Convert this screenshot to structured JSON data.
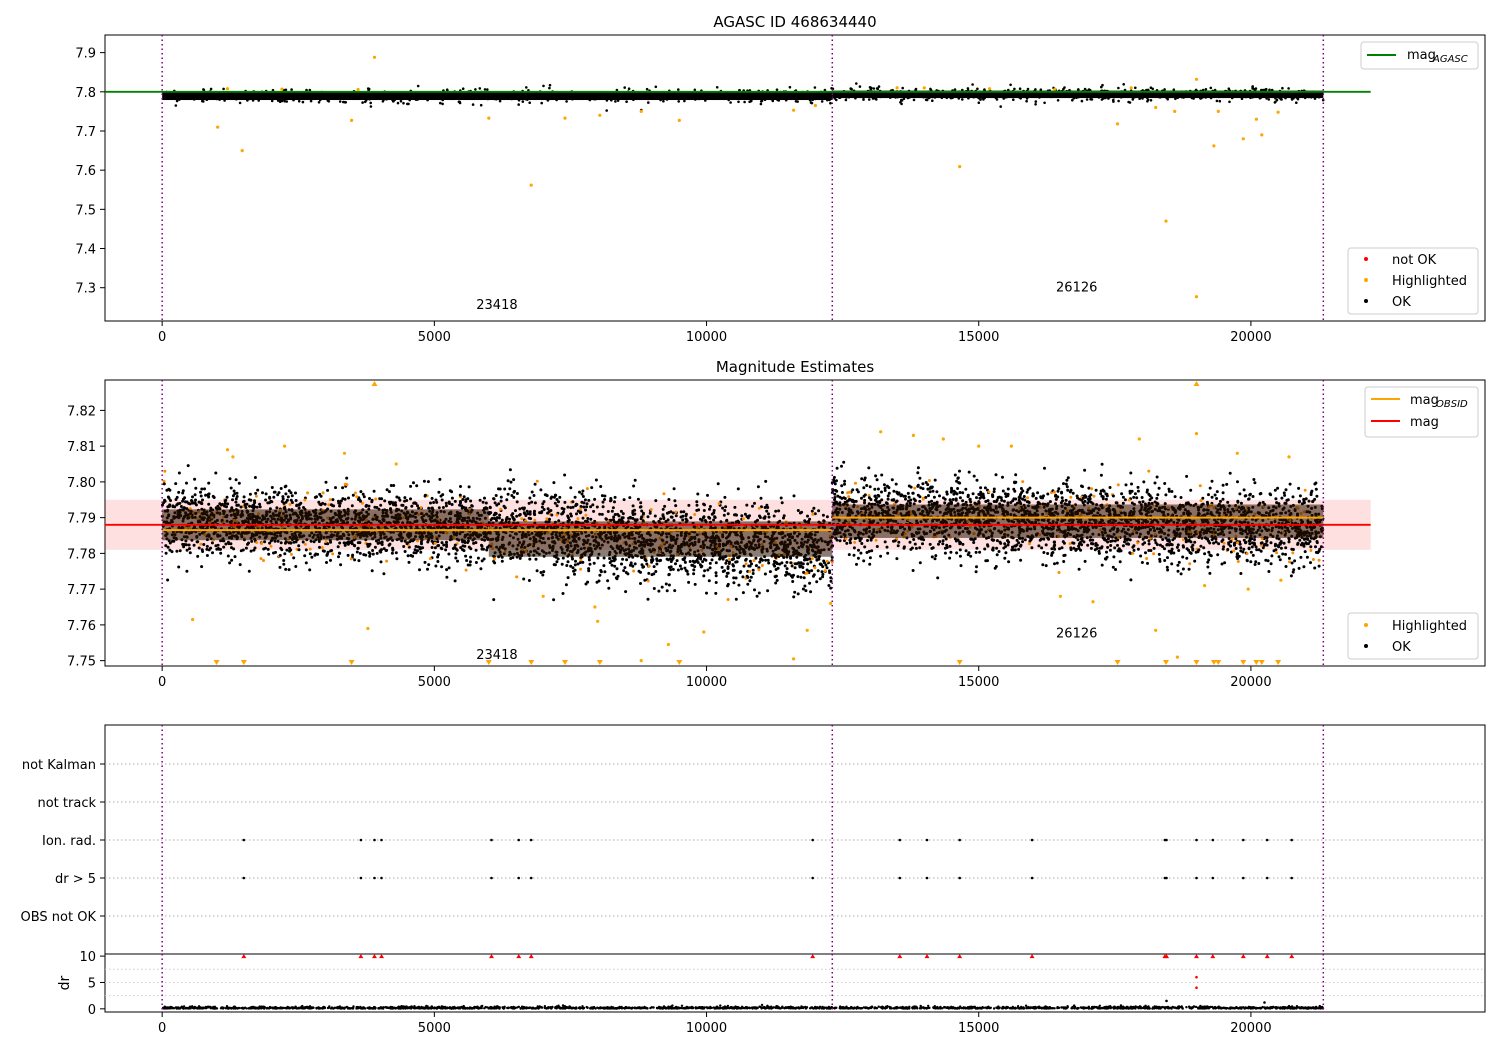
{
  "chart_data": [
    {
      "type": "scatter",
      "title": "AGASC ID 468634440",
      "xlim": [
        -1050,
        24300
      ],
      "ylim": [
        7.215,
        7.945
      ],
      "xticks": [
        0,
        5000,
        10000,
        15000,
        20000
      ],
      "yticks": [
        7.3,
        7.4,
        7.5,
        7.6,
        7.7,
        7.8,
        7.9
      ],
      "ytick_labels": [
        "7.3",
        "7.4",
        "7.5",
        "7.6",
        "7.7",
        "7.8",
        "7.9"
      ],
      "obs_boundaries": [
        0,
        12310,
        21330
      ],
      "obs_labels": [
        {
          "text": "23418",
          "x": 6150,
          "y": 7.245
        },
        {
          "text": "26126",
          "x": 16800,
          "y": 7.29
        }
      ],
      "mag_agasc": 7.8,
      "mag_agasc_xrange": [
        -1050,
        22200
      ],
      "ok_band": [
        {
          "x": [
            0,
            12310
          ],
          "ymin": 7.775,
          "ymax": 7.805
        },
        {
          "x": [
            12310,
            21330
          ],
          "ymin": 7.78,
          "ymax": 7.807
        }
      ],
      "highlighted": [
        {
          "x": 1020,
          "y": 7.71
        },
        {
          "x": 1470,
          "y": 7.65
        },
        {
          "x": 3480,
          "y": 7.727
        },
        {
          "x": 3900,
          "y": 7.888
        },
        {
          "x": 6000,
          "y": 7.733
        },
        {
          "x": 6780,
          "y": 7.562
        },
        {
          "x": 7400,
          "y": 7.733
        },
        {
          "x": 8040,
          "y": 7.74
        },
        {
          "x": 8800,
          "y": 7.75
        },
        {
          "x": 9500,
          "y": 7.727
        },
        {
          "x": 11600,
          "y": 7.753
        },
        {
          "x": 12000,
          "y": 7.765
        },
        {
          "x": 14650,
          "y": 7.609
        },
        {
          "x": 17550,
          "y": 7.718
        },
        {
          "x": 18250,
          "y": 7.76
        },
        {
          "x": 18440,
          "y": 7.47
        },
        {
          "x": 18600,
          "y": 7.75
        },
        {
          "x": 19000,
          "y": 7.277
        },
        {
          "x": 19000,
          "y": 7.832
        },
        {
          "x": 19320,
          "y": 7.662
        },
        {
          "x": 19400,
          "y": 7.75
        },
        {
          "x": 19860,
          "y": 7.68
        },
        {
          "x": 20100,
          "y": 7.73
        },
        {
          "x": 20200,
          "y": 7.69
        },
        {
          "x": 20500,
          "y": 7.748
        },
        {
          "x": 1200,
          "y": 7.808
        },
        {
          "x": 2200,
          "y": 7.807
        },
        {
          "x": 3600,
          "y": 7.806
        },
        {
          "x": 13500,
          "y": 7.81
        },
        {
          "x": 14000,
          "y": 7.81
        },
        {
          "x": 15200,
          "y": 7.808
        },
        {
          "x": 16400,
          "y": 7.807
        },
        {
          "x": 17800,
          "y": 7.81
        }
      ],
      "legend_top": {
        "placement": "upper right",
        "entries": [
          {
            "label": "mag",
            "sub": "AGASC",
            "color": "#008000"
          }
        ]
      },
      "legend_bottom": {
        "placement": "lower right",
        "entries": [
          {
            "label": "not OK",
            "color": "#ff0000"
          },
          {
            "label": "Highlighted",
            "color": "#ffa500"
          },
          {
            "label": "OK",
            "color": "#000000"
          }
        ]
      }
    },
    {
      "type": "scatter",
      "title": "Magnitude Estimates",
      "xlim": [
        -1050,
        24300
      ],
      "ylim": [
        7.7485,
        7.8285
      ],
      "xticks": [
        0,
        5000,
        10000,
        15000,
        20000
      ],
      "yticks": [
        7.75,
        7.76,
        7.77,
        7.78,
        7.79,
        7.8,
        7.81,
        7.82
      ],
      "ytick_labels": [
        "7.75",
        "7.76",
        "7.77",
        "7.78",
        "7.79",
        "7.80",
        "7.81",
        "7.82"
      ],
      "obs_boundaries": [
        0,
        12310,
        21330
      ],
      "obs_labels": [
        {
          "text": "23418",
          "x": 6150,
          "y": 7.7505
        },
        {
          "text": "26126",
          "x": 16800,
          "y": 7.7565
        }
      ],
      "mag": 7.788,
      "mag_band": [
        7.781,
        7.795
      ],
      "mag_xrange": [
        -1050,
        22200
      ],
      "mag_obsid": [
        {
          "x": [
            0,
            12310
          ],
          "y": 7.7865
        },
        {
          "x": [
            12310,
            21330
          ],
          "y": 7.79
        }
      ],
      "ok_distribution": [
        {
          "x": [
            0,
            6000
          ],
          "center_start": 7.789,
          "center_end": 7.787,
          "sigma": 0.0048
        },
        {
          "x": [
            6000,
            12310
          ],
          "center_start": 7.787,
          "center_end": 7.781,
          "sigma": 0.0055
        },
        {
          "x": [
            12310,
            21330
          ],
          "center_start": 7.791,
          "center_end": 7.787,
          "sigma": 0.0052
        }
      ],
      "highlighted": [
        {
          "x": 560,
          "y": 7.7615
        },
        {
          "x": 1200,
          "y": 7.809
        },
        {
          "x": 1300,
          "y": 7.807
        },
        {
          "x": 2250,
          "y": 7.81
        },
        {
          "x": 3350,
          "y": 7.808
        },
        {
          "x": 3780,
          "y": 7.759
        },
        {
          "x": 4300,
          "y": 7.805
        },
        {
          "x": 7000,
          "y": 7.768
        },
        {
          "x": 7950,
          "y": 7.765
        },
        {
          "x": 8000,
          "y": 7.761
        },
        {
          "x": 8800,
          "y": 7.75
        },
        {
          "x": 9300,
          "y": 7.7545
        },
        {
          "x": 9950,
          "y": 7.758
        },
        {
          "x": 11600,
          "y": 7.7505
        },
        {
          "x": 11850,
          "y": 7.7585
        },
        {
          "x": 12280,
          "y": 7.766
        },
        {
          "x": 13200,
          "y": 7.814
        },
        {
          "x": 13800,
          "y": 7.813
        },
        {
          "x": 14350,
          "y": 7.812
        },
        {
          "x": 15000,
          "y": 7.81
        },
        {
          "x": 15600,
          "y": 7.81
        },
        {
          "x": 16500,
          "y": 7.768
        },
        {
          "x": 17100,
          "y": 7.7665
        },
        {
          "x": 17950,
          "y": 7.812
        },
        {
          "x": 18250,
          "y": 7.7585
        },
        {
          "x": 18650,
          "y": 7.751
        },
        {
          "x": 19000,
          "y": 7.8135
        },
        {
          "x": 19150,
          "y": 7.771
        },
        {
          "x": 19750,
          "y": 7.808
        },
        {
          "x": 19950,
          "y": 7.77
        },
        {
          "x": 20550,
          "y": 7.7725
        },
        {
          "x": 20700,
          "y": 7.807
        }
      ],
      "out_of_range_below": [
        1000,
        1500,
        3480,
        6000,
        6780,
        7400,
        8040,
        9500,
        14650,
        17550,
        18440,
        19000,
        19320,
        19400,
        19860,
        20100,
        20200,
        20500
      ],
      "out_of_range_above": [
        3900,
        19000
      ],
      "legend_top": {
        "placement": "upper right",
        "entries": [
          {
            "label": "mag",
            "sub": "OBSID",
            "color": "#ffa500"
          },
          {
            "label": "mag",
            "sub": "",
            "color": "#ff0000"
          }
        ]
      },
      "legend_bottom": {
        "placement": "lower right",
        "entries": [
          {
            "label": "Highlighted",
            "color": "#ffa500"
          },
          {
            "label": "OK",
            "color": "#000000"
          }
        ]
      }
    },
    {
      "type": "scatter",
      "title": "",
      "xlim": [
        -1050,
        24300
      ],
      "categories": [
        "OBS not OK",
        "dr > 5",
        "Ion. rad.",
        "not track",
        "not Kalman"
      ],
      "flag_points": {
        "Ion. rad.": [
          1500,
          3650,
          3900,
          4030,
          6050,
          6550,
          6780,
          11950,
          13550,
          14050,
          14650,
          15980,
          18420,
          18450,
          19000,
          19300,
          19860,
          20300,
          20750
        ],
        "dr > 5": [
          1500,
          3650,
          3900,
          4030,
          6050,
          6550,
          6780,
          11950,
          13550,
          14050,
          14650,
          15980,
          18420,
          18450,
          19000,
          19300,
          19860,
          20300,
          20750
        ]
      },
      "obs_boundaries": [
        0,
        12310,
        21330
      ]
    },
    {
      "type": "scatter",
      "title": "",
      "ylabel": "dr",
      "xlim": [
        -1050,
        24300
      ],
      "ylim": [
        -0.6,
        10.4
      ],
      "xticks": [
        0,
        5000,
        10000,
        15000,
        20000
      ],
      "yticks": [
        0,
        5,
        10
      ],
      "ytick_labels": [
        "0",
        "5",
        "10"
      ],
      "dr_capped": [
        1500,
        3650,
        3900,
        4030,
        6050,
        6550,
        6780,
        11950,
        13550,
        14050,
        14650,
        15980,
        18420,
        18450,
        19000,
        19300,
        19860,
        20300,
        20750
      ],
      "dr_outliers": [
        {
          "x": 19000,
          "y": 6.0
        },
        {
          "x": 19000,
          "y": 4.0
        },
        {
          "x": 18450,
          "y": 1.5
        },
        {
          "x": 20250,
          "y": 1.2
        }
      ],
      "obs_boundaries": [
        0,
        12310,
        21330
      ]
    }
  ]
}
